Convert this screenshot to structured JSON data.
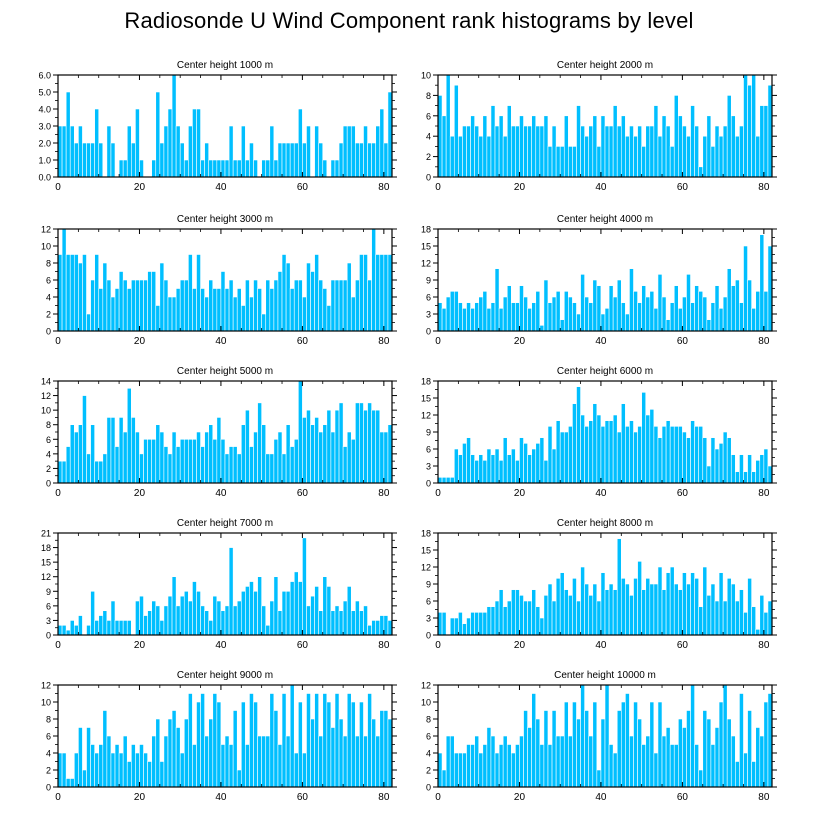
{
  "figure": {
    "title": "Radiosonde U Wind Component rank histograms by level",
    "bar_color": "#00bfff",
    "bar_edge_color": "#ffffff",
    "axis_color": "#000000"
  },
  "chart_data": [
    {
      "type": "bar",
      "title": "Center height 1000 m",
      "xlim": [
        0,
        82
      ],
      "ylim": [
        0,
        6
      ],
      "xticks": [
        0,
        20,
        40,
        60,
        80
      ],
      "xtick_labels": [
        "0",
        "20",
        "40",
        "60",
        "80"
      ],
      "yticks": [
        0,
        1,
        2,
        3,
        4,
        5,
        6
      ],
      "ytick_labels": [
        "0.0",
        "1.0",
        "2.0",
        "3.0",
        "4.0",
        "5.0",
        "6.0"
      ],
      "values": [
        3,
        3,
        5,
        3,
        2,
        3,
        2,
        2,
        2,
        4,
        2,
        0,
        3,
        2,
        0,
        1,
        1,
        3,
        2,
        4,
        1,
        0,
        0,
        1,
        5,
        2,
        3,
        4,
        6,
        3,
        2,
        1,
        3,
        4,
        4,
        1,
        2,
        1,
        1,
        1,
        1,
        1,
        3,
        1,
        1,
        3,
        1,
        2,
        1,
        0,
        1,
        1,
        3,
        1,
        2,
        2,
        2,
        2,
        2,
        4,
        2,
        3,
        0,
        3,
        2,
        1,
        0,
        1,
        1,
        2,
        3,
        3,
        3,
        2,
        2,
        3,
        2,
        2,
        3,
        4,
        2,
        5
      ]
    },
    {
      "type": "bar",
      "title": "Center height 2000 m",
      "xlim": [
        0,
        82
      ],
      "ylim": [
        0,
        10
      ],
      "xticks": [
        0,
        20,
        40,
        60,
        80
      ],
      "xtick_labels": [
        "0",
        "20",
        "40",
        "60",
        "80"
      ],
      "yticks": [
        0,
        2,
        4,
        6,
        8,
        10
      ],
      "ytick_labels": [
        "0",
        "2",
        "4",
        "6",
        "8",
        "10"
      ],
      "values": [
        8,
        6,
        10,
        4,
        9,
        4,
        5,
        5,
        6,
        5,
        4,
        6,
        4,
        7,
        5,
        6,
        4,
        7,
        5,
        5,
        6,
        5,
        5,
        6,
        5,
        5,
        6,
        3,
        5,
        3,
        3,
        6,
        3,
        3,
        7,
        5,
        4,
        5,
        6,
        3,
        6,
        5,
        5,
        7,
        5,
        6,
        4,
        5,
        4,
        5,
        3,
        5,
        5,
        7,
        4,
        6,
        5,
        3,
        8,
        6,
        5,
        4,
        7,
        5,
        1,
        4,
        6,
        3,
        5,
        4,
        5,
        8,
        6,
        4,
        5,
        10,
        9,
        10,
        4,
        7,
        7,
        9
      ]
    },
    {
      "type": "bar",
      "title": "Center height 3000 m",
      "xlim": [
        0,
        82
      ],
      "ylim": [
        0,
        12
      ],
      "xticks": [
        0,
        20,
        40,
        60,
        80
      ],
      "xtick_labels": [
        "0",
        "20",
        "40",
        "60",
        "80"
      ],
      "yticks": [
        0,
        2,
        4,
        6,
        8,
        10,
        12
      ],
      "ytick_labels": [
        "0",
        "2",
        "4",
        "6",
        "8",
        "10",
        "12"
      ],
      "values": [
        9,
        12,
        9,
        9,
        9,
        8,
        9,
        2,
        6,
        9,
        5,
        8,
        6,
        4,
        5,
        7,
        6,
        5,
        6,
        6,
        6,
        6,
        7,
        7,
        3,
        8,
        6,
        4,
        4,
        5,
        6,
        6,
        9,
        5,
        9,
        5,
        4,
        6,
        5,
        5,
        7,
        5,
        6,
        4,
        5,
        3,
        6,
        4,
        6,
        5,
        2,
        6,
        5,
        6,
        7,
        9,
        8,
        5,
        6,
        6,
        4,
        8,
        7,
        9,
        6,
        5,
        3,
        6,
        6,
        6,
        6,
        8,
        4,
        6,
        9,
        9,
        6,
        12,
        9,
        9,
        9,
        9
      ]
    },
    {
      "type": "bar",
      "title": "Center height 4000 m",
      "xlim": [
        0,
        82
      ],
      "ylim": [
        0,
        18
      ],
      "xticks": [
        0,
        20,
        40,
        60,
        80
      ],
      "xtick_labels": [
        "0",
        "20",
        "40",
        "60",
        "80"
      ],
      "yticks": [
        0,
        3,
        6,
        9,
        12,
        15,
        18
      ],
      "ytick_labels": [
        "0",
        "3",
        "6",
        "9",
        "12",
        "15",
        "18"
      ],
      "values": [
        5,
        4,
        6,
        7,
        7,
        5,
        4,
        5,
        4,
        5,
        6,
        7,
        4,
        5,
        11,
        4,
        6,
        8,
        5,
        5,
        8,
        6,
        4,
        5,
        7,
        1,
        9,
        5,
        6,
        7,
        2,
        7,
        6,
        5,
        3,
        10,
        6,
        5,
        9,
        8,
        3,
        4,
        8,
        6,
        9,
        5,
        3,
        11,
        7,
        5,
        8,
        6,
        7,
        4,
        10,
        6,
        2,
        5,
        8,
        4,
        6,
        10,
        5,
        8,
        7,
        6,
        2,
        5,
        8,
        4,
        6,
        11,
        8,
        9,
        5,
        15,
        9,
        4,
        7,
        17,
        7,
        15
      ]
    },
    {
      "type": "bar",
      "title": "Center height 5000 m",
      "xlim": [
        0,
        82
      ],
      "ylim": [
        0,
        14
      ],
      "xticks": [
        0,
        20,
        40,
        60,
        80
      ],
      "xtick_labels": [
        "0",
        "20",
        "40",
        "60",
        "80"
      ],
      "yticks": [
        0,
        2,
        4,
        6,
        8,
        10,
        12,
        14
      ],
      "ytick_labels": [
        "0",
        "2",
        "4",
        "6",
        "8",
        "10",
        "12",
        "14"
      ],
      "values": [
        3,
        3,
        5,
        8,
        7,
        8,
        12,
        4,
        8,
        3,
        3,
        4,
        9,
        9,
        5,
        9,
        7,
        13,
        9,
        7,
        4,
        6,
        6,
        6,
        8,
        7,
        5,
        4,
        7,
        5,
        6,
        6,
        6,
        6,
        7,
        5,
        7,
        8,
        6,
        9,
        6,
        4,
        5,
        5,
        4,
        8,
        10,
        5,
        7,
        11,
        8,
        4,
        4,
        6,
        7,
        4,
        8,
        5,
        6,
        14,
        9,
        10,
        8,
        9,
        7,
        8,
        10,
        7,
        10,
        11,
        5,
        7,
        6,
        11,
        11,
        10,
        11,
        10,
        10,
        7,
        7,
        8
      ]
    },
    {
      "type": "bar",
      "title": "Center height 6000 m",
      "xlim": [
        0,
        82
      ],
      "ylim": [
        0,
        18
      ],
      "xticks": [
        0,
        20,
        40,
        60,
        80
      ],
      "xtick_labels": [
        "0",
        "20",
        "40",
        "60",
        "80"
      ],
      "yticks": [
        0,
        3,
        6,
        9,
        12,
        15,
        18
      ],
      "ytick_labels": [
        "0",
        "3",
        "6",
        "9",
        "12",
        "15",
        "18"
      ],
      "values": [
        1,
        1,
        1,
        1,
        6,
        5,
        7,
        8,
        5,
        4,
        5,
        4,
        6,
        5,
        6,
        4,
        8,
        5,
        6,
        4,
        8,
        7,
        5,
        6,
        7,
        8,
        4,
        10,
        6,
        11,
        9,
        9,
        10,
        14,
        17,
        12,
        10,
        11,
        14,
        12,
        10,
        11,
        11,
        12,
        9,
        14,
        10,
        11,
        9,
        10,
        16,
        12,
        13,
        10,
        8,
        10,
        11,
        10,
        10,
        10,
        9,
        8,
        11,
        10,
        10,
        8,
        3,
        8,
        6,
        7,
        9,
        8,
        5,
        2,
        5,
        2,
        5,
        2,
        4,
        5,
        6,
        3
      ]
    },
    {
      "type": "bar",
      "title": "Center height 7000 m",
      "xlim": [
        0,
        82
      ],
      "ylim": [
        0,
        21
      ],
      "xticks": [
        0,
        20,
        40,
        60,
        80
      ],
      "xtick_labels": [
        "0",
        "20",
        "40",
        "60",
        "80"
      ],
      "yticks": [
        0,
        3,
        6,
        9,
        12,
        15,
        18,
        21
      ],
      "ytick_labels": [
        "0",
        "3",
        "6",
        "9",
        "12",
        "15",
        "18",
        "21"
      ],
      "values": [
        2,
        2,
        1,
        3,
        2,
        4,
        0,
        2,
        9,
        3,
        4,
        5,
        3,
        7,
        3,
        3,
        3,
        3,
        0,
        7,
        8,
        4,
        5,
        7,
        6,
        3,
        6,
        8,
        12,
        6,
        8,
        9,
        7,
        11,
        9,
        6,
        5,
        3,
        8,
        7,
        5,
        6,
        18,
        6,
        7,
        9,
        10,
        11,
        9,
        12,
        6,
        2,
        7,
        12,
        5,
        9,
        9,
        11,
        13,
        11,
        20,
        6,
        8,
        10,
        5,
        12,
        10,
        5,
        6,
        5,
        7,
        10,
        5,
        7,
        5,
        6,
        2,
        3,
        3,
        4,
        4,
        3
      ]
    },
    {
      "type": "bar",
      "title": "Center height 8000 m",
      "xlim": [
        0,
        82
      ],
      "ylim": [
        0,
        18
      ],
      "xticks": [
        0,
        20,
        40,
        60,
        80
      ],
      "xtick_labels": [
        "0",
        "20",
        "40",
        "60",
        "80"
      ],
      "yticks": [
        0,
        3,
        6,
        9,
        12,
        15,
        18
      ],
      "ytick_labels": [
        "0",
        "3",
        "6",
        "9",
        "12",
        "15",
        "18"
      ],
      "values": [
        4,
        4,
        0,
        3,
        3,
        4,
        2,
        3,
        4,
        4,
        4,
        4,
        5,
        5,
        6,
        8,
        5,
        6,
        8,
        8,
        7,
        6,
        6,
        8,
        5,
        3,
        7,
        9,
        6,
        10,
        11,
        8,
        7,
        10,
        6,
        12,
        9,
        7,
        9,
        6,
        11,
        8,
        9,
        8,
        17,
        10,
        9,
        7,
        10,
        13,
        8,
        10,
        9,
        9,
        12,
        8,
        11,
        12,
        9,
        8,
        11,
        9,
        11,
        10,
        5,
        12,
        7,
        9,
        6,
        11,
        6,
        10,
        9,
        6,
        8,
        4,
        10,
        5,
        1,
        7,
        4,
        6
      ]
    },
    {
      "type": "bar",
      "title": "Center height 9000 m",
      "xlim": [
        0,
        82
      ],
      "ylim": [
        0,
        12
      ],
      "xticks": [
        0,
        20,
        40,
        60,
        80
      ],
      "xtick_labels": [
        "0",
        "20",
        "40",
        "60",
        "80"
      ],
      "yticks": [
        0,
        2,
        4,
        6,
        8,
        10,
        12
      ],
      "ytick_labels": [
        "0",
        "2",
        "4",
        "6",
        "8",
        "10",
        "12"
      ],
      "values": [
        4,
        4,
        1,
        1,
        4,
        7,
        2,
        7,
        5,
        4,
        5,
        9,
        6,
        4,
        5,
        4,
        6,
        3,
        5,
        4,
        5,
        4,
        3,
        6,
        8,
        3,
        6,
        8,
        9,
        7,
        4,
        8,
        11,
        5,
        10,
        11,
        6,
        8,
        11,
        10,
        5,
        6,
        5,
        9,
        2,
        10,
        5,
        11,
        10,
        6,
        6,
        6,
        11,
        9,
        5,
        11,
        6,
        12,
        4,
        10,
        4,
        11,
        8,
        11,
        6,
        11,
        10,
        7,
        11,
        8,
        6,
        11,
        10,
        6,
        10,
        6,
        11,
        8,
        6,
        9,
        9,
        8
      ]
    },
    {
      "type": "bar",
      "title": "Center height 10000 m",
      "xlim": [
        0,
        82
      ],
      "ylim": [
        0,
        12
      ],
      "xticks": [
        0,
        20,
        40,
        60,
        80
      ],
      "xtick_labels": [
        "0",
        "20",
        "40",
        "60",
        "80"
      ],
      "yticks": [
        0,
        2,
        4,
        6,
        8,
        10,
        12
      ],
      "ytick_labels": [
        "0",
        "2",
        "4",
        "6",
        "8",
        "10",
        "12"
      ],
      "values": [
        4,
        2,
        6,
        6,
        4,
        4,
        4,
        5,
        5,
        6,
        4,
        5,
        7,
        6,
        4,
        5,
        6,
        5,
        4,
        5,
        6,
        9,
        7,
        11,
        8,
        5,
        9,
        5,
        9,
        6,
        6,
        10,
        6,
        10,
        8,
        12,
        9,
        6,
        10,
        2,
        8,
        12,
        5,
        4,
        9,
        10,
        11,
        6,
        10,
        8,
        5,
        6,
        10,
        4,
        10,
        6,
        7,
        5,
        5,
        8,
        7,
        9,
        12,
        5,
        2,
        9,
        8,
        5,
        7,
        10,
        12,
        8,
        6,
        3,
        11,
        4,
        9,
        3,
        7,
        6,
        10,
        11
      ]
    }
  ]
}
